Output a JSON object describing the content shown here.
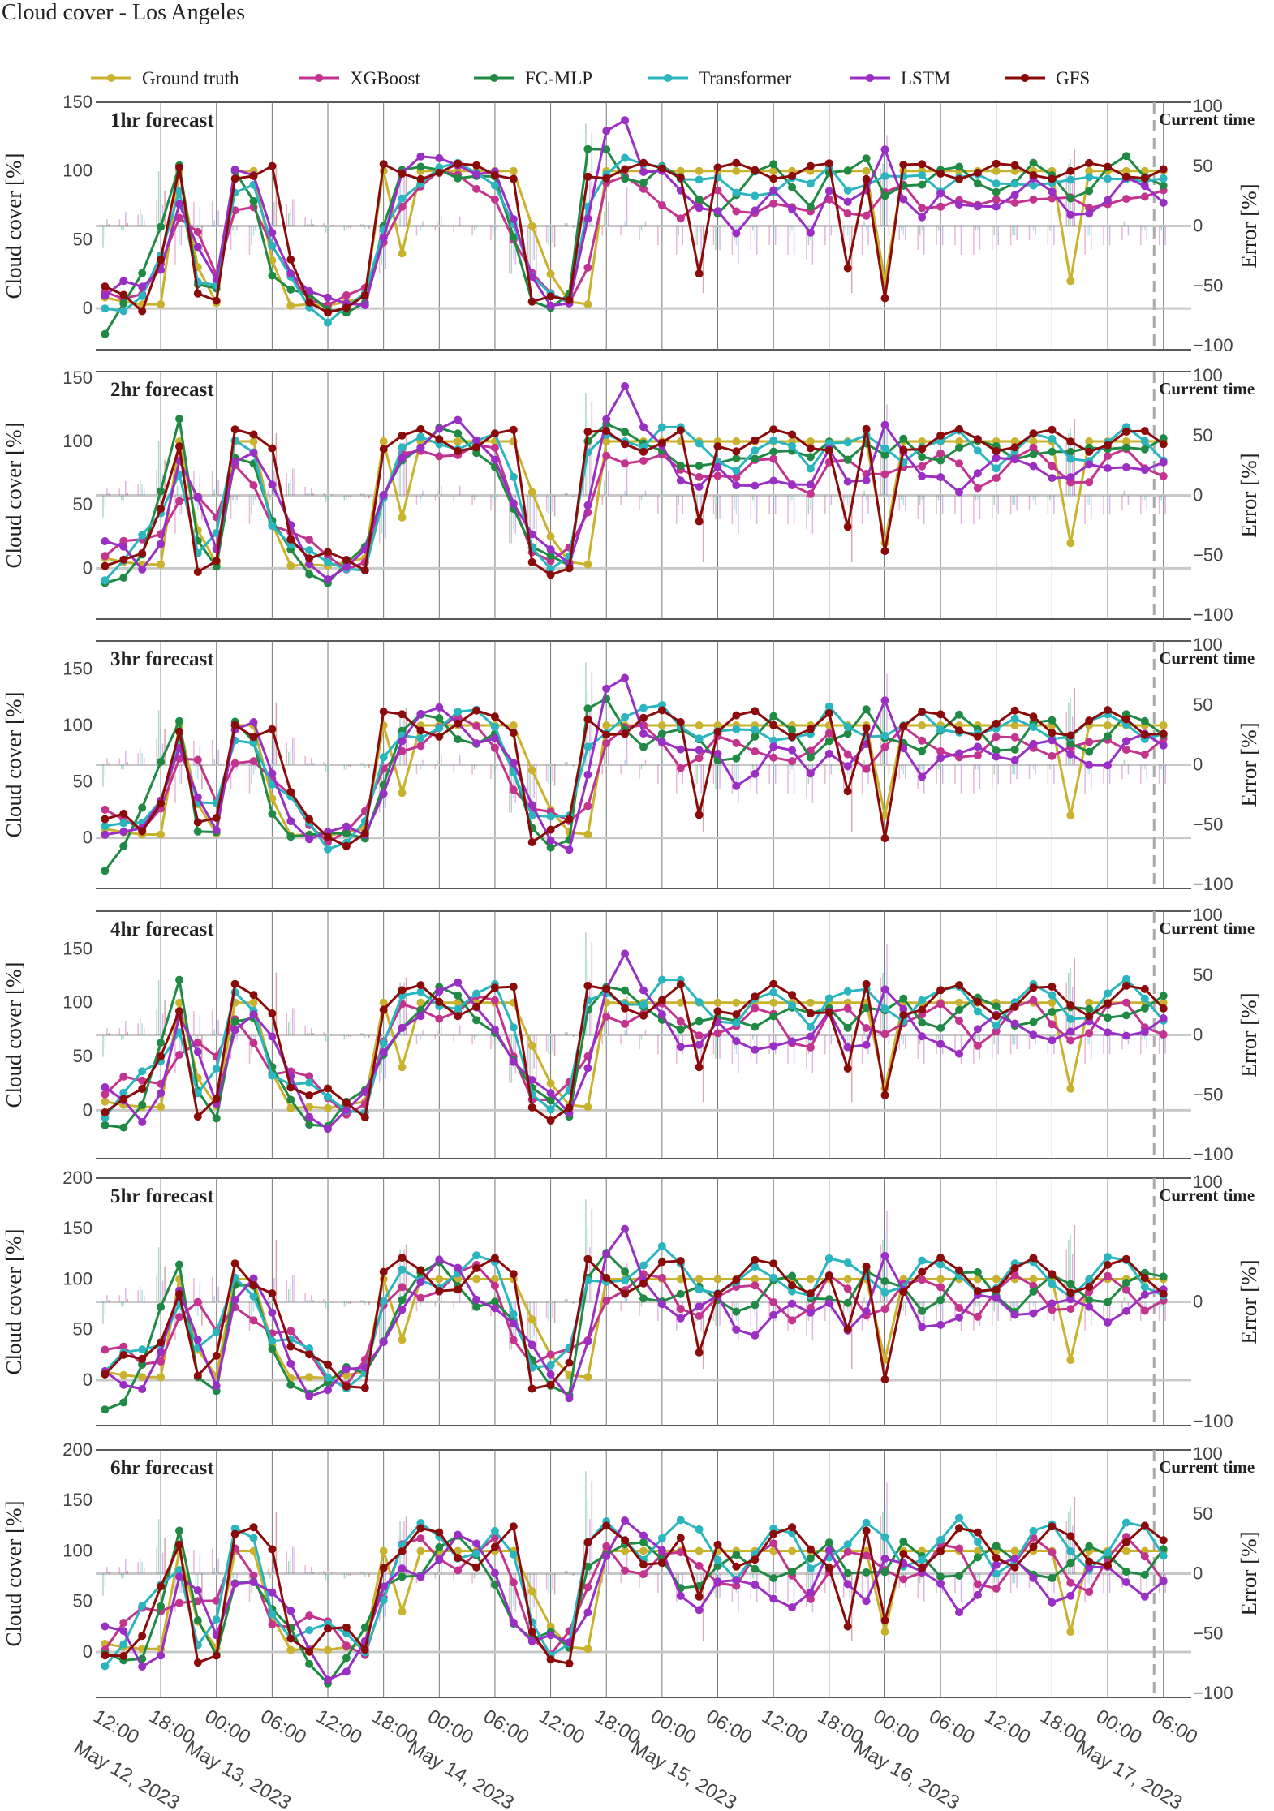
{
  "chart_data": {
    "type": "line",
    "title": "Cloud cover - Los Angeles",
    "colors": {
      "Ground truth": "#c8b22e",
      "XGBoost": "#c2348e",
      "FC-MLP": "#208a45",
      "Transformer": "#2bb5bf",
      "LSTM": "#9a2fc4",
      "GFS": "#8b0a0a",
      "current_time": "#aaaaaa",
      "grid": "#777777",
      "zero": "#c8c8c8"
    },
    "legend": [
      "Ground truth",
      "XGBoost",
      "FC-MLP",
      "Transformer",
      "LSTM",
      "GFS"
    ],
    "ylabel_left": "Cloud cover [%]",
    "ylabel_right": "Error [%]",
    "current_time_label": "Current time",
    "x_range_hours": [
      -1,
      117
    ],
    "current_time_hour": 113,
    "grid_hours": [
      6,
      12,
      18,
      24,
      30,
      36,
      42,
      48,
      54,
      60,
      66,
      72,
      78,
      84,
      90,
      96,
      102,
      108,
      114
    ],
    "x_ticks": [
      {
        "hour": 0,
        "label": "12:00",
        "sub": "May 12, 2023"
      },
      {
        "hour": 6,
        "label": "18:00",
        "sub": ""
      },
      {
        "hour": 12,
        "label": "00:00",
        "sub": "May 13, 2023"
      },
      {
        "hour": 18,
        "label": "06:00",
        "sub": ""
      },
      {
        "hour": 24,
        "label": "12:00",
        "sub": ""
      },
      {
        "hour": 30,
        "label": "18:00",
        "sub": ""
      },
      {
        "hour": 36,
        "label": "00:00",
        "sub": "May 14, 2023"
      },
      {
        "hour": 42,
        "label": "06:00",
        "sub": ""
      },
      {
        "hour": 48,
        "label": "12:00",
        "sub": ""
      },
      {
        "hour": 54,
        "label": "18:00",
        "sub": ""
      },
      {
        "hour": 60,
        "label": "00:00",
        "sub": "May 15, 2023"
      },
      {
        "hour": 66,
        "label": "06:00",
        "sub": ""
      },
      {
        "hour": 72,
        "label": "12:00",
        "sub": ""
      },
      {
        "hour": 78,
        "label": "18:00",
        "sub": ""
      },
      {
        "hour": 84,
        "label": "00:00",
        "sub": "May 16, 2023"
      },
      {
        "hour": 90,
        "label": "06:00",
        "sub": ""
      },
      {
        "hour": 96,
        "label": "12:00",
        "sub": ""
      },
      {
        "hour": 102,
        "label": "18:00",
        "sub": ""
      },
      {
        "hour": 108,
        "label": "00:00",
        "sub": "May 17, 2023"
      },
      {
        "hour": 114,
        "label": "06:00",
        "sub": ""
      }
    ],
    "panels": [
      {
        "title": "1hr forecast",
        "ylim": [
          -30,
          150
        ],
        "yticks": [
          0,
          50,
          100,
          150
        ],
        "err_lim": [
          -100,
          100
        ],
        "err_ticks": [
          -100,
          -50,
          0,
          50,
          100
        ]
      },
      {
        "title": "2hr forecast",
        "ylim": [
          -40,
          155
        ],
        "yticks": [
          0,
          50,
          100,
          150
        ],
        "err_lim": [
          -100,
          100
        ],
        "err_ticks": [
          -100,
          -50,
          0,
          50,
          100
        ]
      },
      {
        "title": "3hr forecast",
        "ylim": [
          -45,
          175
        ],
        "yticks": [
          0,
          50,
          100,
          150
        ],
        "err_lim": [
          -100,
          100
        ],
        "err_ticks": [
          -100,
          -50,
          0,
          50,
          100
        ]
      },
      {
        "title": "4hr forecast",
        "ylim": [
          -45,
          185
        ],
        "yticks": [
          0,
          50,
          100,
          150
        ],
        "err_lim": [
          -100,
          100
        ],
        "err_ticks": [
          -100,
          -50,
          0,
          50,
          100
        ]
      },
      {
        "title": "5hr forecast",
        "ylim": [
          -45,
          200
        ],
        "yticks": [
          0,
          50,
          100,
          150,
          200
        ],
        "err_lim": [
          -100,
          100
        ],
        "err_ticks": [
          -100,
          0,
          100
        ]
      },
      {
        "title": "6hr forecast",
        "ylim": [
          -45,
          200
        ],
        "yticks": [
          0,
          50,
          100,
          150,
          200
        ],
        "err_lim": [
          -100,
          100
        ],
        "err_ticks": [
          -100,
          -50,
          0,
          50,
          100
        ]
      }
    ],
    "x_hours": [
      0,
      2,
      4,
      6,
      8,
      10,
      12,
      14,
      16,
      18,
      20,
      22,
      24,
      26,
      28,
      30,
      32,
      34,
      36,
      38,
      40,
      42,
      44,
      46,
      48,
      50,
      52,
      54,
      56,
      58,
      60,
      62,
      64,
      66,
      68,
      70,
      72,
      74,
      76,
      78,
      80,
      82,
      84,
      86,
      88,
      90,
      92,
      94,
      96,
      98,
      100,
      102,
      104,
      106,
      108,
      110,
      112,
      114
    ],
    "series": [
      {
        "name": "Ground truth",
        "values": [
          8,
          5,
          3,
          3,
          100,
          30,
          4,
          100,
          100,
          35,
          2,
          3,
          2,
          5,
          8,
          100,
          40,
          100,
          100,
          100,
          100,
          100,
          100,
          60,
          25,
          5,
          3,
          100,
          100,
          100,
          100,
          100,
          100,
          100,
          100,
          100,
          100,
          100,
          100,
          100,
          100,
          100,
          20,
          100,
          100,
          100,
          100,
          100,
          100,
          100,
          100,
          100,
          20,
          100,
          100,
          100,
          100,
          100
        ]
      },
      {
        "name": "XGBoost",
        "values": [
          10,
          12,
          15,
          30,
          60,
          55,
          30,
          75,
          70,
          40,
          25,
          12,
          5,
          5,
          10,
          50,
          80,
          90,
          95,
          93,
          90,
          85,
          50,
          20,
          8,
          8,
          35,
          90,
          90,
          85,
          80,
          70,
          75,
          80,
          70,
          75,
          80,
          70,
          65,
          80,
          75,
          70,
          80,
          85,
          75,
          80,
          80,
          70,
          75,
          80,
          85,
          80,
          75,
          70,
          80,
          85,
          80,
          80
        ]
      },
      {
        "name": "FC-MLP",
        "values": [
          -15,
          0,
          20,
          60,
          110,
          20,
          10,
          95,
          80,
          30,
          15,
          5,
          -5,
          0,
          10,
          60,
          95,
          100,
          105,
          100,
          95,
          90,
          50,
          10,
          5,
          8,
          110,
          115,
          100,
          95,
          100,
          90,
          80,
          75,
          85,
          95,
          100,
          90,
          80,
          100,
          95,
          105,
          85,
          95,
          90,
          95,
          100,
          95,
          90,
          90,
          100,
          95,
          85,
          90,
          100,
          105,
          95,
          95
        ]
      },
      {
        "name": "Transformer",
        "values": [
          -5,
          0,
          15,
          40,
          80,
          15,
          20,
          90,
          90,
          40,
          20,
          5,
          -5,
          0,
          5,
          55,
          85,
          95,
          100,
          100,
          98,
          95,
          65,
          20,
          5,
          5,
          80,
          100,
          105,
          100,
          105,
          100,
          95,
          90,
          80,
          85,
          90,
          95,
          85,
          100,
          90,
          95,
          95,
          90,
          95,
          90,
          100,
          95,
          85,
          90,
          95,
          95,
          90,
          90,
          95,
          100,
          95,
          90
        ]
      },
      {
        "name": "LSTM",
        "values": [
          15,
          20,
          10,
          25,
          80,
          50,
          20,
          95,
          95,
          60,
          30,
          10,
          2,
          3,
          8,
          55,
          95,
          105,
          110,
          110,
          100,
          95,
          60,
          25,
          8,
          5,
          60,
          125,
          140,
          105,
          100,
          80,
          70,
          75,
          60,
          70,
          80,
          70,
          60,
          90,
          75,
          80,
          115,
          85,
          70,
          80,
          70,
          75,
          80,
          85,
          90,
          80,
          70,
          75,
          80,
          90,
          85,
          80
        ]
      },
      {
        "name": "GFS",
        "values": [
          10,
          8,
          3,
          40,
          100,
          5,
          5,
          100,
          100,
          100,
          30,
          5,
          3,
          3,
          5,
          100,
          100,
          100,
          100,
          100,
          100,
          100,
          100,
          5,
          3,
          3,
          100,
          100,
          100,
          100,
          100,
          100,
          30,
          100,
          100,
          100,
          100,
          100,
          100,
          100,
          30,
          100,
          10,
          100,
          100,
          100,
          100,
          100,
          100,
          100,
          100,
          100,
          100,
          100,
          100,
          100,
          100,
          100
        ]
      }
    ]
  }
}
